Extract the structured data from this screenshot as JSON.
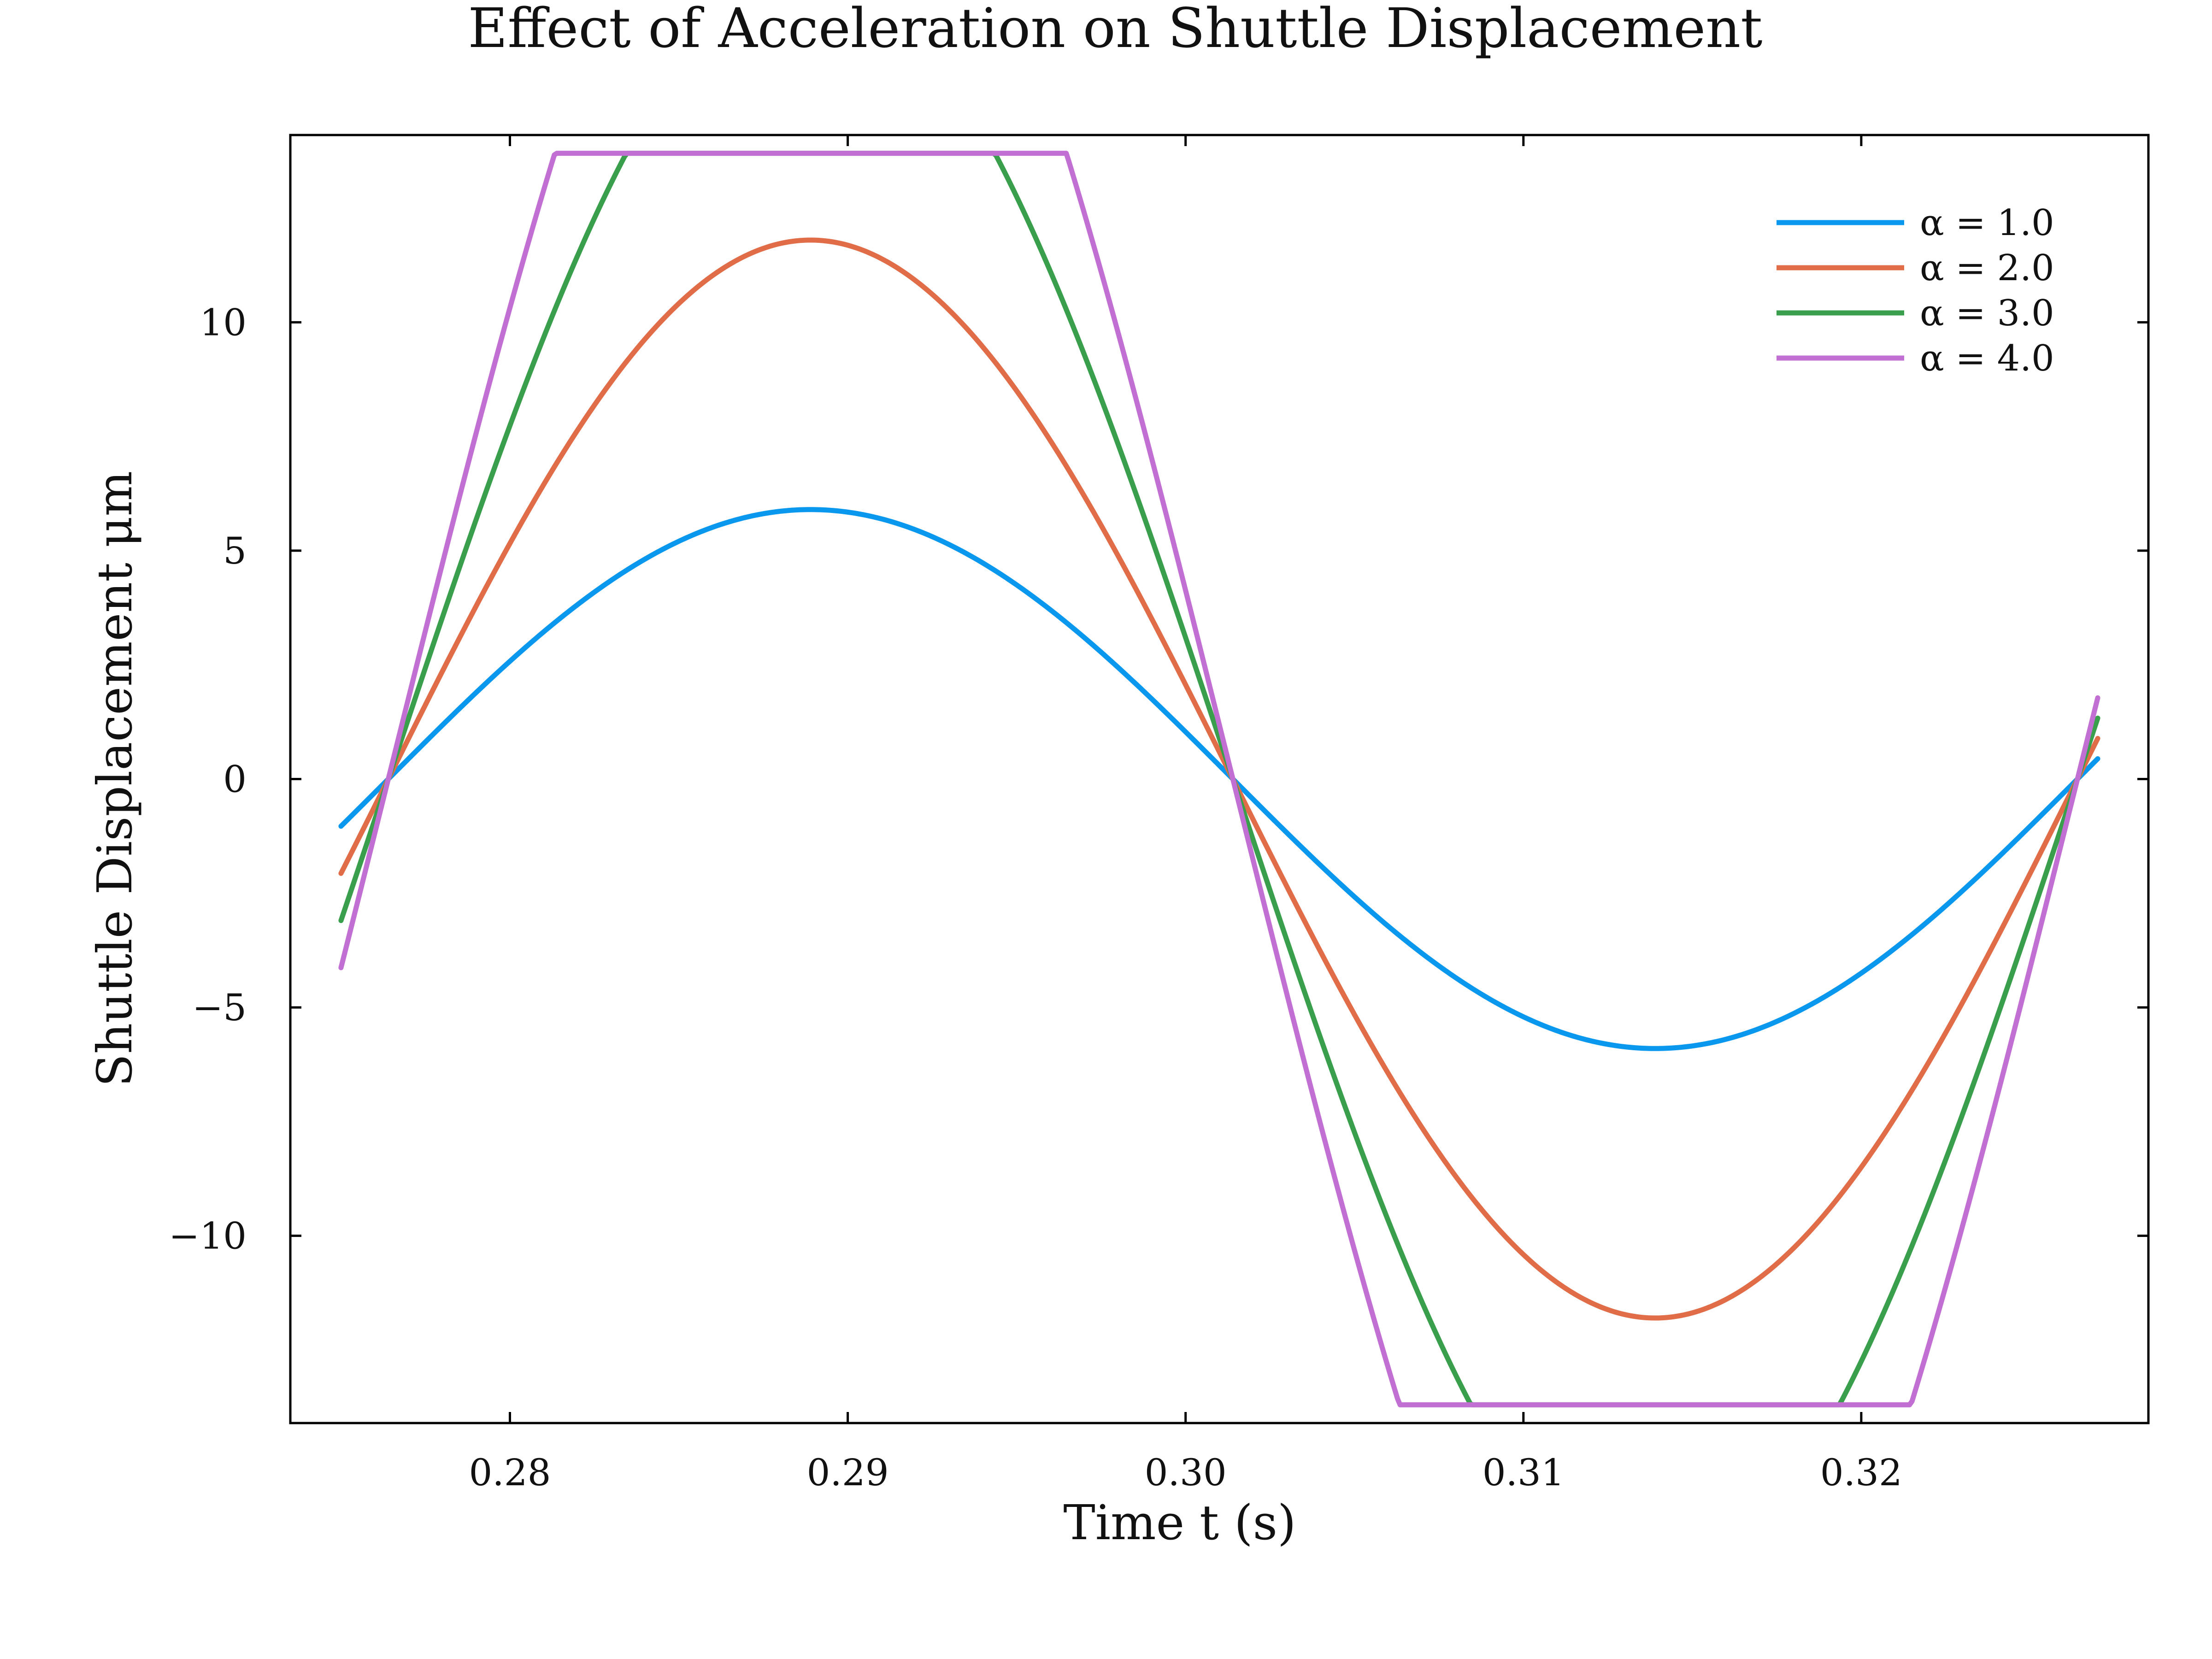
{
  "chart_data": {
    "type": "line",
    "title": "Effect of Acceleration on Shuttle Displacement",
    "xlabel": "Time t (s)",
    "ylabel": "Shuttle Displacement μm",
    "xlim": [
      0.2735,
      0.3285
    ],
    "ylim": [
      -14.1,
      14.1
    ],
    "x_ticks": [
      0.28,
      0.29,
      0.3,
      0.31,
      0.32
    ],
    "x_tick_labels": [
      "0.28",
      "0.29",
      "0.30",
      "0.31",
      "0.32"
    ],
    "y_ticks": [
      10,
      5,
      0,
      -5,
      -10
    ],
    "y_tick_labels": [
      "10",
      "5",
      "0",
      "−5",
      "−10"
    ],
    "grid": false,
    "legend_position": "top-right",
    "t_range": [
      0.275,
      0.327
    ],
    "period": 0.05,
    "zero_crossing": 0.2764,
    "amplitude": 5.9,
    "max_displacement": 13.7,
    "series": [
      {
        "name": "α = 1.0",
        "alpha": 1.0,
        "color": "#0a97ee"
      },
      {
        "name": "α = 2.0",
        "alpha": 2.0,
        "color": "#e06c48"
      },
      {
        "name": "α = 3.0",
        "alpha": 3.0,
        "color": "#3a9f4c"
      },
      {
        "name": "α = 4.0",
        "alpha": 4.0,
        "color": "#c16fd2"
      }
    ]
  }
}
